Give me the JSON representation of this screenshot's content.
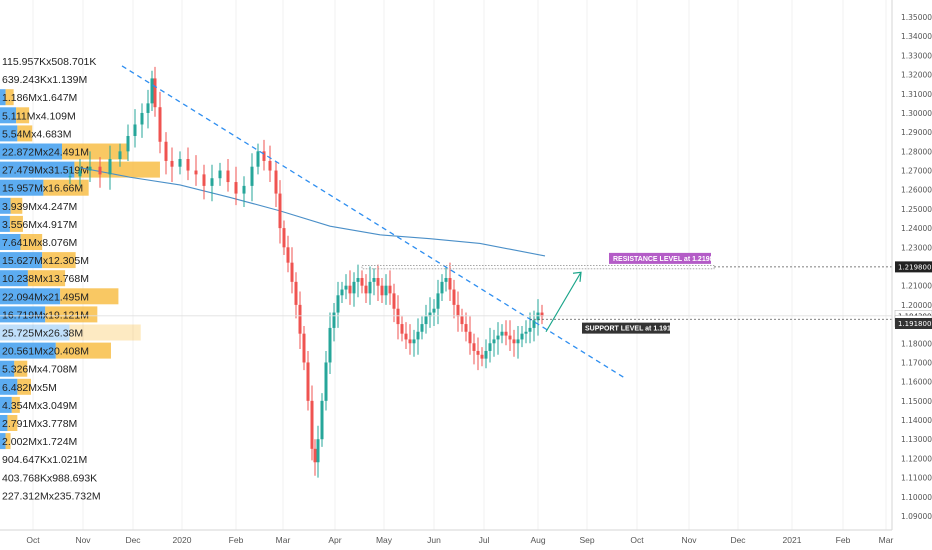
{
  "chart_data": {
    "type": "candlestick",
    "instrument_note": "",
    "ylim": [
      1.085,
      1.355
    ],
    "y_ticks": [
      "1.350000",
      "1.340000",
      "1.330000",
      "1.320000",
      "1.310000",
      "1.300000",
      "1.290000",
      "1.280000",
      "1.270000",
      "1.260000",
      "1.250000",
      "1.240000",
      "1.230000",
      "1.220000",
      "1.210000",
      "1.200000",
      "1.190000",
      "1.180000",
      "1.170000",
      "1.160000",
      "1.150000",
      "1.140000",
      "1.130000",
      "1.120000",
      "1.110000",
      "1.100000",
      "1.090000"
    ],
    "x_ticks": [
      "Oct",
      "Nov",
      "Dec",
      "2020",
      "Feb",
      "Mar",
      "Apr",
      "May",
      "Jun",
      "Jul",
      "Aug",
      "Sep",
      "Oct",
      "Nov",
      "Dec",
      "2021",
      "Feb",
      "Mar"
    ],
    "volume_profile": [
      {
        "label": "115.957Kx508.701K",
        "price": 1.3245,
        "blue": 0.0,
        "orange": 0.0
      },
      {
        "label": "639.243Kx1.139M",
        "price": 1.317,
        "blue": 0.0,
        "orange": 0.0
      },
      {
        "label": "1.186Mx1.647M",
        "price": 1.3095,
        "blue": 0.09,
        "orange": 0.13
      },
      {
        "label": "5.111Mx4.109M",
        "price": 1.302,
        "blue": 0.26,
        "orange": 0.21
      },
      {
        "label": "5.54Mx4.683M",
        "price": 1.2945,
        "blue": 0.28,
        "orange": 0.24
      },
      {
        "label": "22.872Mx24.491M",
        "price": 1.287,
        "blue": 1.0,
        "orange": 1.07
      },
      {
        "label": "27.479Mx31.519M",
        "price": 1.2795,
        "blue": 1.2,
        "orange": 1.38
      },
      {
        "label": "15.957Mx16.66M",
        "price": 1.272,
        "blue": 0.7,
        "orange": 0.73
      },
      {
        "label": "3.939Mx4.247M",
        "price": 1.2645,
        "blue": 0.17,
        "orange": 0.19
      },
      {
        "label": "3.556Mx4.917M",
        "price": 1.257,
        "blue": 0.16,
        "orange": 0.21
      },
      {
        "label": "7.641Mx8.076M",
        "price": 1.2495,
        "blue": 0.33,
        "orange": 0.35
      },
      {
        "label": "15.627Mx12.305M",
        "price": 1.242,
        "blue": 0.68,
        "orange": 0.54
      },
      {
        "label": "10.238Mx13.768M",
        "price": 1.2345,
        "blue": 0.45,
        "orange": 0.6
      },
      {
        "label": "22.094Mx21.495M",
        "price": 1.227,
        "blue": 0.97,
        "orange": 0.94
      },
      {
        "label": "16.719Mx19.121M",
        "price": 1.2195,
        "blue": 0.73,
        "orange": 0.84
      },
      {
        "label": "25.725Mx26.38M",
        "price": 1.212,
        "blue": 1.12,
        "orange": 1.15,
        "faded": true
      },
      {
        "label": "20.561Mx20.408M",
        "price": 1.2045,
        "blue": 0.9,
        "orange": 0.89
      },
      {
        "label": "5.326Mx4.708M",
        "price": 1.197,
        "blue": 0.23,
        "orange": 0.21
      },
      {
        "label": "6.482Mx5M",
        "price": 1.1895,
        "blue": 0.28,
        "orange": 0.22
      },
      {
        "label": "4.354Mx3.049M",
        "price": 1.182,
        "blue": 0.19,
        "orange": 0.13
      },
      {
        "label": "2.791Mx3.778M",
        "price": 1.1745,
        "blue": 0.12,
        "orange": 0.16
      },
      {
        "label": "2.002Mx1.724M",
        "price": 1.167,
        "blue": 0.09,
        "orange": 0.08
      },
      {
        "label": "904.647Kx1.021M",
        "price": 1.1595,
        "blue": 0.0,
        "orange": 0.0
      },
      {
        "label": "403.768Kx988.693K",
        "price": 1.152,
        "blue": 0.0,
        "orange": 0.0
      },
      {
        "label": "227.312Mx235.732M",
        "price": 1.1445,
        "blue": 0.0,
        "orange": 0.0
      }
    ],
    "annotations": {
      "resistance": {
        "text": "RESISTANCE LEVEL at 1.2198",
        "price": 1.2198,
        "color": "#b45cc7"
      },
      "support": {
        "text": "SUPPORT LEVEL at 1.1918",
        "price": 1.1918,
        "color": "#333333"
      },
      "trendline_color": "#2e8ef0",
      "arrow_color": "#1aa58a",
      "ma_color": "#4a8fc8"
    },
    "price_tags": [
      {
        "text": "1.219800",
        "price": 1.2198,
        "bg": "#222222"
      },
      {
        "text": "1.194300",
        "price": 1.1943,
        "bg": "#ffffff"
      },
      {
        "text": "17:33:07",
        "price": 1.1915,
        "bg": "#ffffff"
      },
      {
        "text": "1.191800",
        "price": 1.1903,
        "bg": "#333333"
      }
    ],
    "colors": {
      "up": "#26a69a",
      "down": "#ef5350",
      "grid": "#f0f0f0",
      "vp_blue": "#4aa3f0",
      "vp_orange": "#f7b733"
    }
  }
}
